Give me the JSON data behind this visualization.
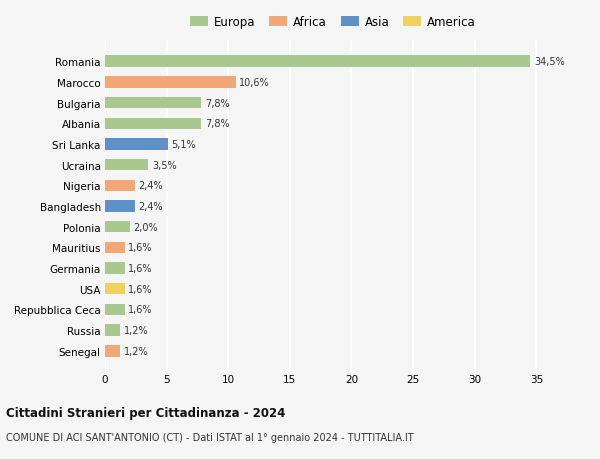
{
  "countries": [
    "Romania",
    "Marocco",
    "Bulgaria",
    "Albania",
    "Sri Lanka",
    "Ucraina",
    "Nigeria",
    "Bangladesh",
    "Polonia",
    "Mauritius",
    "Germania",
    "USA",
    "Repubblica Ceca",
    "Russia",
    "Senegal"
  ],
  "values": [
    34.5,
    10.6,
    7.8,
    7.8,
    5.1,
    3.5,
    2.4,
    2.4,
    2.0,
    1.6,
    1.6,
    1.6,
    1.6,
    1.2,
    1.2
  ],
  "labels": [
    "34,5%",
    "10,6%",
    "7,8%",
    "7,8%",
    "5,1%",
    "3,5%",
    "2,4%",
    "2,4%",
    "2,0%",
    "1,6%",
    "1,6%",
    "1,6%",
    "1,6%",
    "1,2%",
    "1,2%"
  ],
  "continents": [
    "Europa",
    "Africa",
    "Europa",
    "Europa",
    "Asia",
    "Europa",
    "Africa",
    "Asia",
    "Europa",
    "Africa",
    "Europa",
    "America",
    "Europa",
    "Europa",
    "Africa"
  ],
  "colors": {
    "Europa": "#a8c890",
    "Africa": "#f0a878",
    "Asia": "#6090c8",
    "America": "#f0d060"
  },
  "legend_order": [
    "Europa",
    "Africa",
    "Asia",
    "America"
  ],
  "title": "Cittadini Stranieri per Cittadinanza - 2024",
  "subtitle": "COMUNE DI ACI SANT'ANTONIO (CT) - Dati ISTAT al 1° gennaio 2024 - TUTTITALIA.IT",
  "xlim": [
    0,
    37
  ],
  "xticks": [
    0,
    5,
    10,
    15,
    20,
    25,
    30,
    35
  ],
  "bg_color": "#f5f5f5",
  "grid_color": "#ffffff",
  "bar_height": 0.55
}
